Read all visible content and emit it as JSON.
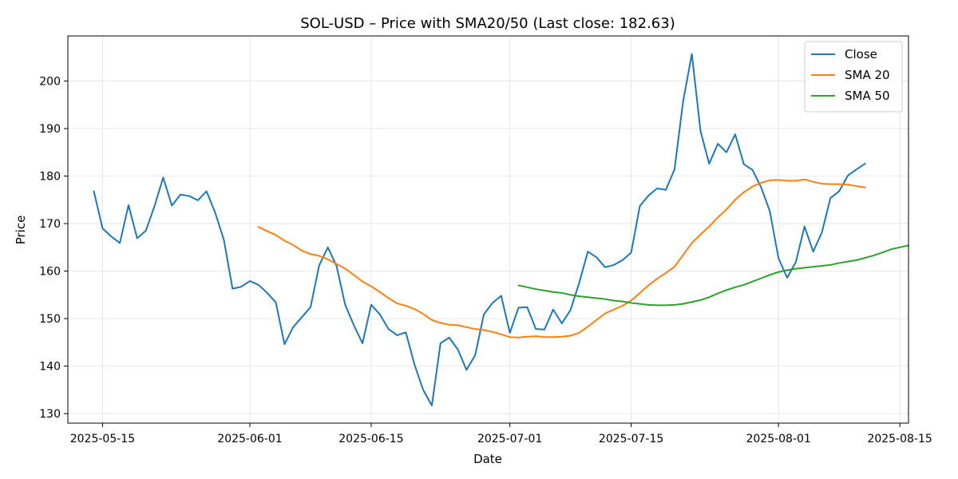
{
  "chart_data": {
    "type": "line",
    "title": "SOL-USD – Price with SMA20/50 (Last close: 182.63)",
    "xlabel": "Date",
    "ylabel": "Price",
    "x_range": [
      "2025-05-11",
      "2025-08-16"
    ],
    "ylim": [
      128,
      209.5
    ],
    "x_ticks": [
      {
        "date": "2025-05-15",
        "label": "2025-05-15"
      },
      {
        "date": "2025-06-01",
        "label": "2025-06-01"
      },
      {
        "date": "2025-06-15",
        "label": "2025-06-15"
      },
      {
        "date": "2025-07-01",
        "label": "2025-07-01"
      },
      {
        "date": "2025-07-15",
        "label": "2025-07-15"
      },
      {
        "date": "2025-08-01",
        "label": "2025-08-01"
      },
      {
        "date": "2025-08-15",
        "label": "2025-08-15"
      }
    ],
    "y_ticks": [
      130,
      140,
      150,
      160,
      170,
      180,
      190,
      200
    ],
    "grid": true,
    "legend_position": "top-right",
    "series": [
      {
        "name": "Close",
        "color": "#1f77b4",
        "start_date": "2025-05-14",
        "values": [
          176.8,
          169.0,
          167.3,
          165.9,
          173.9,
          166.9,
          168.5,
          173.7,
          179.7,
          173.8,
          176.1,
          175.8,
          174.9,
          176.8,
          172.3,
          166.6,
          156.3,
          156.7,
          157.9,
          157.1,
          155.4,
          153.4,
          144.6,
          148.2,
          150.3,
          152.4,
          161.2,
          165.0,
          161.1,
          152.9,
          148.6,
          144.8,
          152.9,
          150.9,
          147.8,
          146.5,
          147.1,
          140.3,
          135.0,
          131.7,
          144.8,
          146.0,
          143.5,
          139.2,
          142.3,
          150.9,
          153.3,
          154.8,
          147.0,
          152.3,
          152.4,
          147.8,
          147.7,
          151.9,
          149.0,
          151.8,
          157.5,
          164.1,
          162.9,
          160.8,
          161.3,
          162.3,
          163.9,
          173.7,
          175.9,
          177.4,
          177.1,
          181.4,
          195.8,
          205.7,
          189.5,
          182.6,
          186.8,
          185.0,
          188.8,
          182.5,
          181.3,
          177.6,
          172.6,
          162.7,
          158.6,
          161.9,
          169.4,
          164.1,
          168.1,
          175.4,
          176.8,
          180.1,
          181.4,
          182.63
        ]
      },
      {
        "name": "SMA 20",
        "color": "#ff7f0e",
        "start_date": "2025-06-02",
        "values": [
          169.3,
          168.4,
          167.6,
          166.4,
          165.5,
          164.3,
          163.6,
          163.2,
          162.5,
          161.5,
          160.5,
          159.2,
          157.8,
          156.8,
          155.6,
          154.3,
          153.2,
          152.7,
          152.0,
          151.0,
          149.7,
          149.1,
          148.7,
          148.6,
          148.2,
          147.8,
          147.6,
          147.2,
          146.7,
          146.1,
          146.0,
          146.2,
          146.3,
          146.1,
          146.1,
          146.2,
          146.4,
          147.0,
          148.3,
          149.7,
          151.1,
          151.9,
          152.7,
          153.8,
          155.4,
          157.0,
          158.4,
          159.6,
          160.9,
          163.4,
          165.9,
          167.7,
          169.4,
          171.3,
          173.0,
          175.0,
          176.6,
          177.8,
          178.6,
          179.1,
          179.2,
          179.0,
          179.0,
          179.3,
          178.8,
          178.4,
          178.3,
          178.3,
          178.2,
          177.9,
          177.6
        ]
      },
      {
        "name": "SMA 50",
        "color": "#2ca02c",
        "start_date": "2025-07-02",
        "values": [
          157.0,
          156.6,
          156.2,
          155.9,
          155.6,
          155.4,
          155.0,
          154.7,
          154.5,
          154.3,
          154.1,
          153.8,
          153.6,
          153.3,
          153.1,
          152.9,
          152.8,
          152.8,
          152.9,
          153.1,
          153.5,
          153.9,
          154.5,
          155.3,
          156.0,
          156.6,
          157.1,
          157.8,
          158.5,
          159.2,
          159.8,
          160.2,
          160.5,
          160.7,
          160.9,
          161.1,
          161.3,
          161.7,
          162.0,
          162.3,
          162.8,
          163.3,
          163.9,
          164.6,
          165.0,
          165.4
        ]
      }
    ]
  }
}
